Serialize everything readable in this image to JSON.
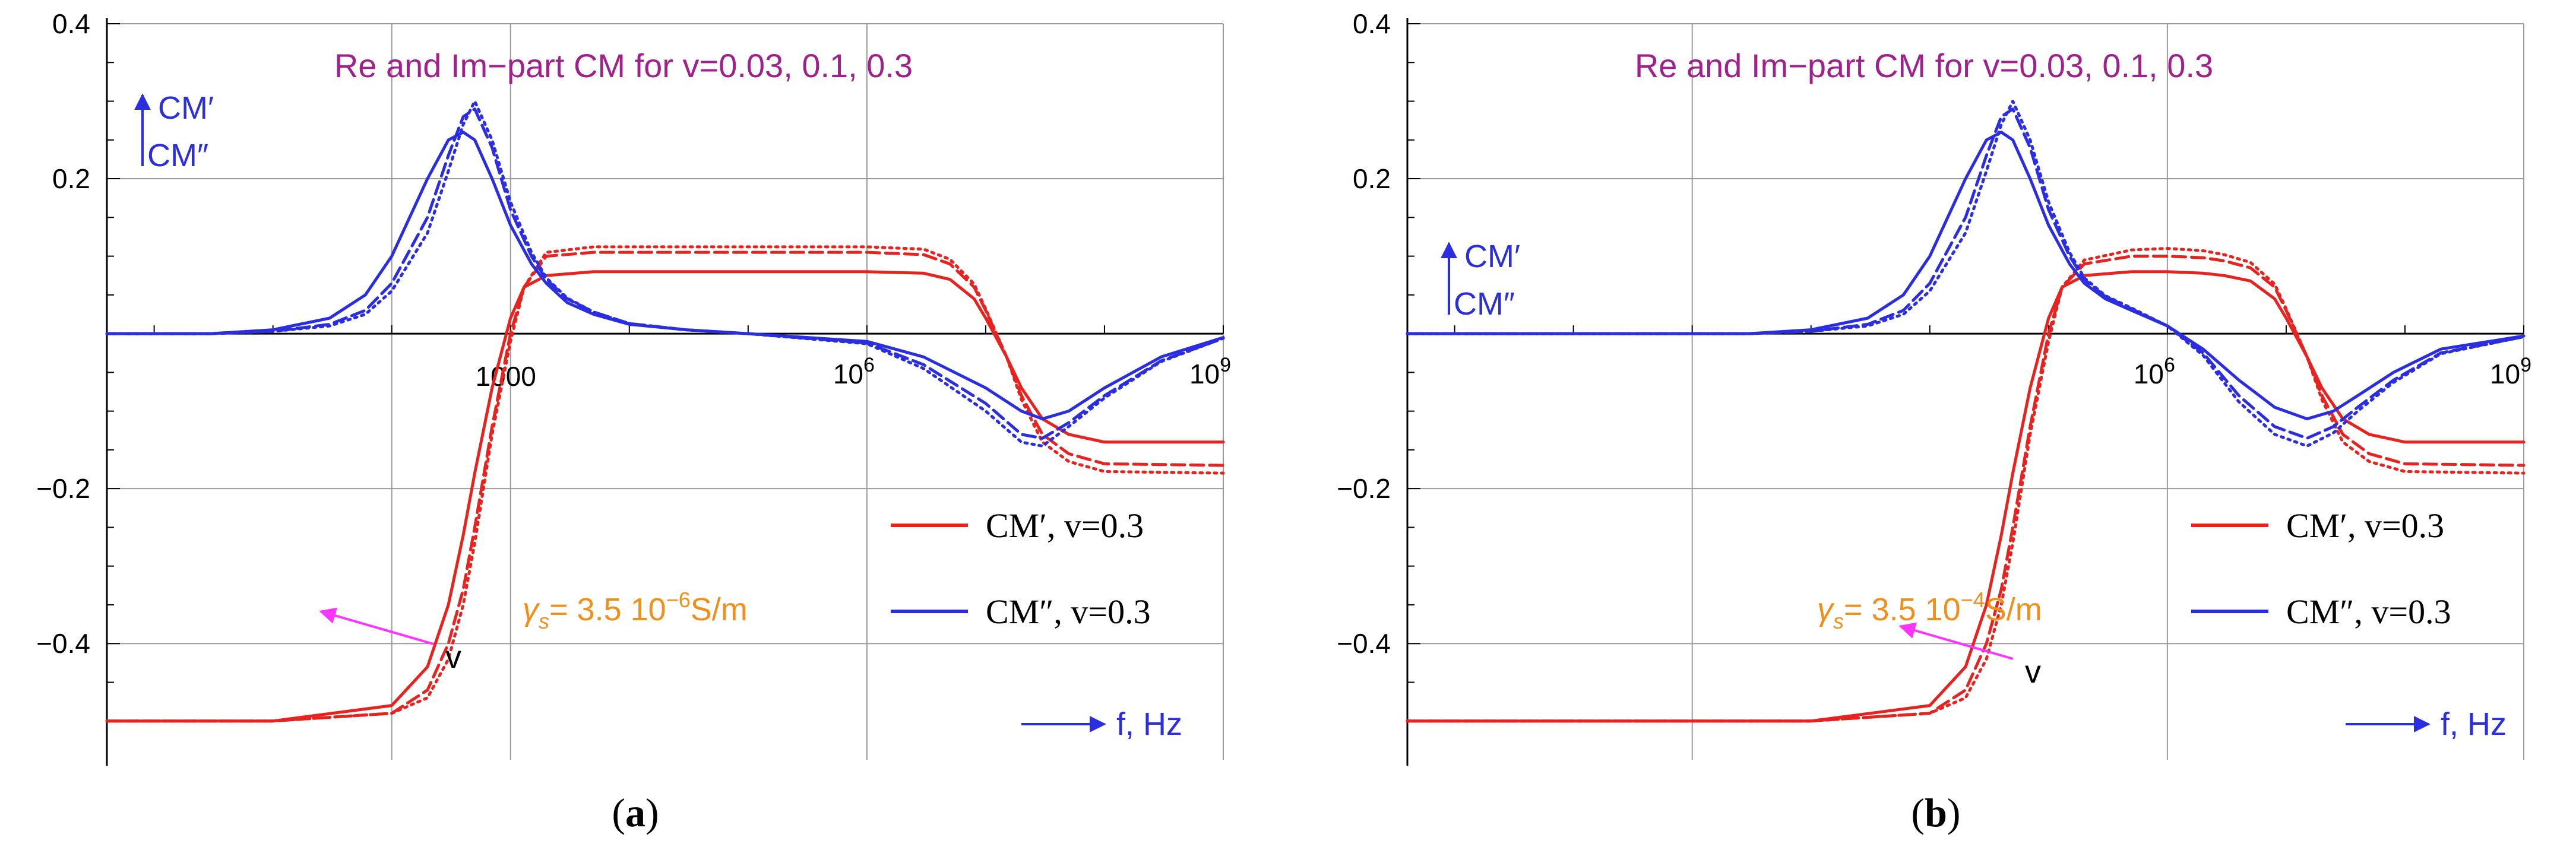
{
  "chart_data": [
    {
      "type": "line",
      "panel_label": "a",
      "title": "Re and Im−part CM for v=0.03, 0.1, 0.3",
      "xscale": "log10",
      "xlim": [
        0.4,
        1000000000.0
      ],
      "ylim": [
        -0.55,
        0.4
      ],
      "xticks": [
        {
          "value": 1000,
          "label": "1000"
        },
        {
          "value": 1000000.0,
          "base": "10",
          "exp": "6"
        },
        {
          "value": 1000000000.0,
          "base": "10",
          "exp": "9"
        }
      ],
      "yticks": [
        {
          "value": 0.4,
          "label": "0.4"
        },
        {
          "value": 0.2,
          "label": "0.2"
        },
        {
          "value": -0.2,
          "label": "−0.2"
        },
        {
          "value": -0.4,
          "label": "−0.4"
        }
      ],
      "ylabel_top": "CM′",
      "ylabel_bottom": "CM″",
      "xlabel": "f, Hz",
      "annotation_prefix": "γ",
      "annotation_sub": "s",
      "annotation_main": "= 3.5 10",
      "annotation_exp": "−6",
      "annotation_unit": "S/m",
      "arrow_label": "v",
      "legend": [
        {
          "label": "CM′, v=0.3",
          "color": "#e8231f"
        },
        {
          "label": "CM″, v=0.3",
          "color": "#2a2ee0"
        }
      ],
      "series": [
        {
          "name": "CM′ v=0.3",
          "component": "real",
          "style": "solid",
          "color": "#e8231f",
          "x": [
            0.4,
            10,
            100,
            200,
            300,
            400,
            500,
            700,
            1000,
            1300,
            2000,
            5000,
            10000.0,
            100000.0,
            1000000.0,
            3000000.0,
            5000000.0,
            8000000.0,
            10000000.0,
            15000000.0,
            20000000.0,
            30000000.0,
            50000000.0,
            100000000.0,
            1000000000.0
          ],
          "y": [
            -0.5,
            -0.5,
            -0.48,
            -0.43,
            -0.35,
            -0.26,
            -0.18,
            -0.07,
            0.02,
            0.06,
            0.075,
            0.08,
            0.08,
            0.08,
            0.08,
            0.078,
            0.07,
            0.045,
            0.02,
            -0.03,
            -0.07,
            -0.11,
            -0.13,
            -0.14,
            -0.14
          ]
        },
        {
          "name": "CM′ v=0.1",
          "component": "real",
          "style": "dashed",
          "color": "#e8231f",
          "x": [
            0.4,
            10,
            100,
            200,
            300,
            400,
            500,
            700,
            1000,
            1300,
            2000,
            5000,
            10000.0,
            100000.0,
            1000000.0,
            3000000.0,
            5000000.0,
            8000000.0,
            10000000.0,
            15000000.0,
            20000000.0,
            30000000.0,
            50000000.0,
            100000000.0,
            1000000000.0
          ],
          "y": [
            -0.5,
            -0.5,
            -0.49,
            -0.46,
            -0.4,
            -0.33,
            -0.25,
            -0.12,
            0.0,
            0.06,
            0.1,
            0.105,
            0.105,
            0.105,
            0.105,
            0.102,
            0.09,
            0.06,
            0.03,
            -0.03,
            -0.08,
            -0.13,
            -0.155,
            -0.168,
            -0.17
          ]
        },
        {
          "name": "CM′ v=0.03",
          "component": "real",
          "style": "dotted",
          "color": "#e8231f",
          "x": [
            0.4,
            10,
            100,
            200,
            300,
            400,
            500,
            700,
            1000,
            1300,
            2000,
            5000,
            10000.0,
            100000.0,
            1000000.0,
            3000000.0,
            5000000.0,
            8000000.0,
            10000000.0,
            15000000.0,
            20000000.0,
            30000000.0,
            50000000.0,
            100000000.0,
            1000000000.0
          ],
          "y": [
            -0.5,
            -0.5,
            -0.49,
            -0.47,
            -0.42,
            -0.35,
            -0.27,
            -0.13,
            -0.01,
            0.06,
            0.105,
            0.112,
            0.112,
            0.112,
            0.112,
            0.109,
            0.096,
            0.064,
            0.032,
            -0.03,
            -0.085,
            -0.14,
            -0.165,
            -0.178,
            -0.18
          ]
        },
        {
          "name": "CM″ v=0.3",
          "component": "imaginary",
          "style": "solid",
          "color": "#2a2ee0",
          "x": [
            0.4,
            3,
            10,
            30,
            60,
            100,
            200,
            300,
            400,
            500,
            700,
            1000,
            1500,
            2000,
            3000,
            5000,
            10000.0,
            30000.0,
            100000.0,
            1000000.0,
            3000000.0,
            10000000.0,
            20000000.0,
            30000000.0,
            50000000.0,
            100000000.0,
            300000000.0,
            1000000000.0
          ],
          "y": [
            0,
            0.0,
            0.005,
            0.02,
            0.05,
            0.1,
            0.2,
            0.25,
            0.26,
            0.25,
            0.2,
            0.14,
            0.09,
            0.065,
            0.04,
            0.025,
            0.012,
            0.005,
            0.0,
            -0.01,
            -0.03,
            -0.07,
            -0.1,
            -0.11,
            -0.1,
            -0.07,
            -0.03,
            -0.005
          ]
        },
        {
          "name": "CM″ v=0.1",
          "component": "imaginary",
          "style": "dashed",
          "color": "#2a2ee0",
          "x": [
            0.4,
            3,
            10,
            30,
            60,
            100,
            200,
            300,
            400,
            500,
            700,
            1000,
            1500,
            2000,
            3000,
            5000,
            10000.0,
            30000.0,
            100000.0,
            1000000.0,
            3000000.0,
            10000000.0,
            20000000.0,
            30000000.0,
            50000000.0,
            100000000.0,
            300000000.0,
            1000000000.0
          ],
          "y": [
            0,
            0.0,
            0.003,
            0.012,
            0.03,
            0.065,
            0.15,
            0.23,
            0.28,
            0.29,
            0.24,
            0.16,
            0.1,
            0.07,
            0.045,
            0.028,
            0.013,
            0.005,
            0.0,
            -0.012,
            -0.04,
            -0.09,
            -0.13,
            -0.135,
            -0.115,
            -0.08,
            -0.035,
            -0.006
          ]
        },
        {
          "name": "CM″ v=0.03",
          "component": "imaginary",
          "style": "dotted",
          "color": "#2a2ee0",
          "x": [
            0.4,
            3,
            10,
            30,
            60,
            100,
            200,
            300,
            400,
            500,
            700,
            1000,
            1500,
            2000,
            3000,
            5000,
            10000.0,
            30000.0,
            100000.0,
            1000000.0,
            3000000.0,
            10000000.0,
            20000000.0,
            30000000.0,
            50000000.0,
            100000000.0,
            300000000.0,
            1000000000.0
          ],
          "y": [
            0,
            0.0,
            0.003,
            0.01,
            0.025,
            0.055,
            0.13,
            0.21,
            0.27,
            0.3,
            0.25,
            0.17,
            0.105,
            0.072,
            0.046,
            0.028,
            0.013,
            0.005,
            0.0,
            -0.013,
            -0.045,
            -0.1,
            -0.14,
            -0.145,
            -0.12,
            -0.083,
            -0.036,
            -0.006
          ]
        }
      ]
    },
    {
      "type": "line",
      "panel_label": "b",
      "title": "Re and Im−part CM for v=0.03, 0.1, 0.3",
      "xscale": "log10",
      "xlim": [
        0.4,
        1000000000.0
      ],
      "ylim": [
        -0.55,
        0.4
      ],
      "xticks": [
        {
          "value": 1000000.0,
          "base": "10",
          "exp": "6"
        },
        {
          "value": 1000000000.0,
          "base": "10",
          "exp": "9"
        }
      ],
      "yticks": [
        {
          "value": 0.4,
          "label": "0.4"
        },
        {
          "value": 0.2,
          "label": "0.2"
        },
        {
          "value": -0.2,
          "label": "−0.2"
        },
        {
          "value": -0.4,
          "label": "−0.4"
        }
      ],
      "ylabel_top": "CM′",
      "ylabel_bottom": "CM″",
      "xlabel": "f, Hz",
      "annotation_prefix": "γ",
      "annotation_sub": "s",
      "annotation_main": "= 3.5 10",
      "annotation_exp": "−4",
      "annotation_unit": "S/m",
      "arrow_label": "v",
      "legend": [
        {
          "label": "CM′, v=0.3",
          "color": "#e8231f"
        },
        {
          "label": "CM″, v=0.3",
          "color": "#2a2ee0"
        }
      ],
      "series": [
        {
          "name": "CM′ v=0.3",
          "component": "real",
          "style": "solid",
          "color": "#e8231f",
          "x": [
            0.4,
            1000,
            10000.0,
            20000.0,
            30000.0,
            40000.0,
            50000.0,
            70000.0,
            100000.0,
            130000.0,
            200000.0,
            500000.0,
            1000000.0,
            2000000.0,
            3000000.0,
            5000000.0,
            8000000.0,
            10000000.0,
            15000000.0,
            20000000.0,
            30000000.0,
            50000000.0,
            100000000.0,
            1000000000.0
          ],
          "y": [
            -0.5,
            -0.5,
            -0.48,
            -0.43,
            -0.35,
            -0.26,
            -0.18,
            -0.07,
            0.02,
            0.06,
            0.075,
            0.08,
            0.08,
            0.078,
            0.075,
            0.068,
            0.045,
            0.02,
            -0.03,
            -0.07,
            -0.11,
            -0.13,
            -0.14,
            -0.14
          ]
        },
        {
          "name": "CM′ v=0.1",
          "component": "real",
          "style": "dashed",
          "color": "#e8231f",
          "x": [
            0.4,
            1000,
            10000.0,
            20000.0,
            30000.0,
            40000.0,
            50000.0,
            70000.0,
            100000.0,
            130000.0,
            200000.0,
            500000.0,
            1000000.0,
            2000000.0,
            3000000.0,
            5000000.0,
            8000000.0,
            10000000.0,
            15000000.0,
            20000000.0,
            30000000.0,
            50000000.0,
            100000000.0,
            1000000000.0
          ],
          "y": [
            -0.5,
            -0.5,
            -0.49,
            -0.46,
            -0.4,
            -0.33,
            -0.25,
            -0.12,
            0.0,
            0.06,
            0.09,
            0.1,
            0.1,
            0.098,
            0.094,
            0.085,
            0.06,
            0.03,
            -0.03,
            -0.08,
            -0.13,
            -0.155,
            -0.168,
            -0.17
          ]
        },
        {
          "name": "CM′ v=0.03",
          "component": "real",
          "style": "dotted",
          "color": "#e8231f",
          "x": [
            0.4,
            1000,
            10000.0,
            20000.0,
            30000.0,
            40000.0,
            50000.0,
            70000.0,
            100000.0,
            130000.0,
            200000.0,
            500000.0,
            1000000.0,
            2000000.0,
            3000000.0,
            5000000.0,
            8000000.0,
            10000000.0,
            15000000.0,
            20000000.0,
            30000000.0,
            50000000.0,
            100000000.0,
            1000000000.0
          ],
          "y": [
            -0.5,
            -0.5,
            -0.49,
            -0.47,
            -0.42,
            -0.35,
            -0.27,
            -0.13,
            -0.01,
            0.06,
            0.095,
            0.108,
            0.11,
            0.107,
            0.102,
            0.092,
            0.064,
            0.032,
            -0.03,
            -0.085,
            -0.14,
            -0.165,
            -0.178,
            -0.18
          ]
        },
        {
          "name": "CM″ v=0.3",
          "component": "imaginary",
          "style": "solid",
          "color": "#2a2ee0",
          "x": [
            0.4,
            300,
            1000,
            3000,
            6000,
            10000.0,
            20000.0,
            30000.0,
            40000.0,
            50000.0,
            70000.0,
            100000.0,
            150000.0,
            200000.0,
            300000.0,
            500000.0,
            1000000.0,
            2000000.0,
            4000000.0,
            8000000.0,
            15000000.0,
            25000000.0,
            40000000.0,
            80000000.0,
            200000000.0,
            1000000000.0
          ],
          "y": [
            0,
            0.0,
            0.005,
            0.02,
            0.05,
            0.1,
            0.2,
            0.25,
            0.26,
            0.25,
            0.2,
            0.14,
            0.09,
            0.065,
            0.045,
            0.03,
            0.01,
            -0.02,
            -0.06,
            -0.095,
            -0.11,
            -0.1,
            -0.08,
            -0.05,
            -0.02,
            -0.003
          ]
        },
        {
          "name": "CM″ v=0.1",
          "component": "imaginary",
          "style": "dashed",
          "color": "#2a2ee0",
          "x": [
            0.4,
            300,
            1000,
            3000,
            6000,
            10000.0,
            20000.0,
            30000.0,
            40000.0,
            50000.0,
            70000.0,
            100000.0,
            150000.0,
            200000.0,
            300000.0,
            500000.0,
            1000000.0,
            2000000.0,
            4000000.0,
            8000000.0,
            15000000.0,
            25000000.0,
            40000000.0,
            80000000.0,
            200000000.0,
            1000000000.0
          ],
          "y": [
            0,
            0.0,
            0.003,
            0.012,
            0.03,
            0.065,
            0.15,
            0.23,
            0.28,
            0.29,
            0.24,
            0.16,
            0.1,
            0.07,
            0.048,
            0.032,
            0.01,
            -0.025,
            -0.08,
            -0.12,
            -0.135,
            -0.12,
            -0.095,
            -0.06,
            -0.025,
            -0.004
          ]
        },
        {
          "name": "CM″ v=0.03",
          "component": "imaginary",
          "style": "dotted",
          "color": "#2a2ee0",
          "x": [
            0.4,
            300,
            1000,
            3000,
            6000,
            10000.0,
            20000.0,
            30000.0,
            40000.0,
            50000.0,
            70000.0,
            100000.0,
            150000.0,
            200000.0,
            300000.0,
            500000.0,
            1000000.0,
            2000000.0,
            4000000.0,
            8000000.0,
            15000000.0,
            25000000.0,
            40000000.0,
            80000000.0,
            200000000.0,
            1000000000.0
          ],
          "y": [
            0,
            0.0,
            0.003,
            0.01,
            0.025,
            0.055,
            0.13,
            0.21,
            0.27,
            0.3,
            0.25,
            0.17,
            0.105,
            0.072,
            0.049,
            0.033,
            0.01,
            -0.028,
            -0.088,
            -0.13,
            -0.145,
            -0.128,
            -0.1,
            -0.063,
            -0.026,
            -0.004
          ]
        }
      ]
    }
  ],
  "colors": {
    "red": "#e8231f",
    "blue": "#2a2ee0",
    "title": "#a0208c",
    "annotation": "#f0901a",
    "magenta": "#ff33ff",
    "grid": "#9a9a9a"
  }
}
